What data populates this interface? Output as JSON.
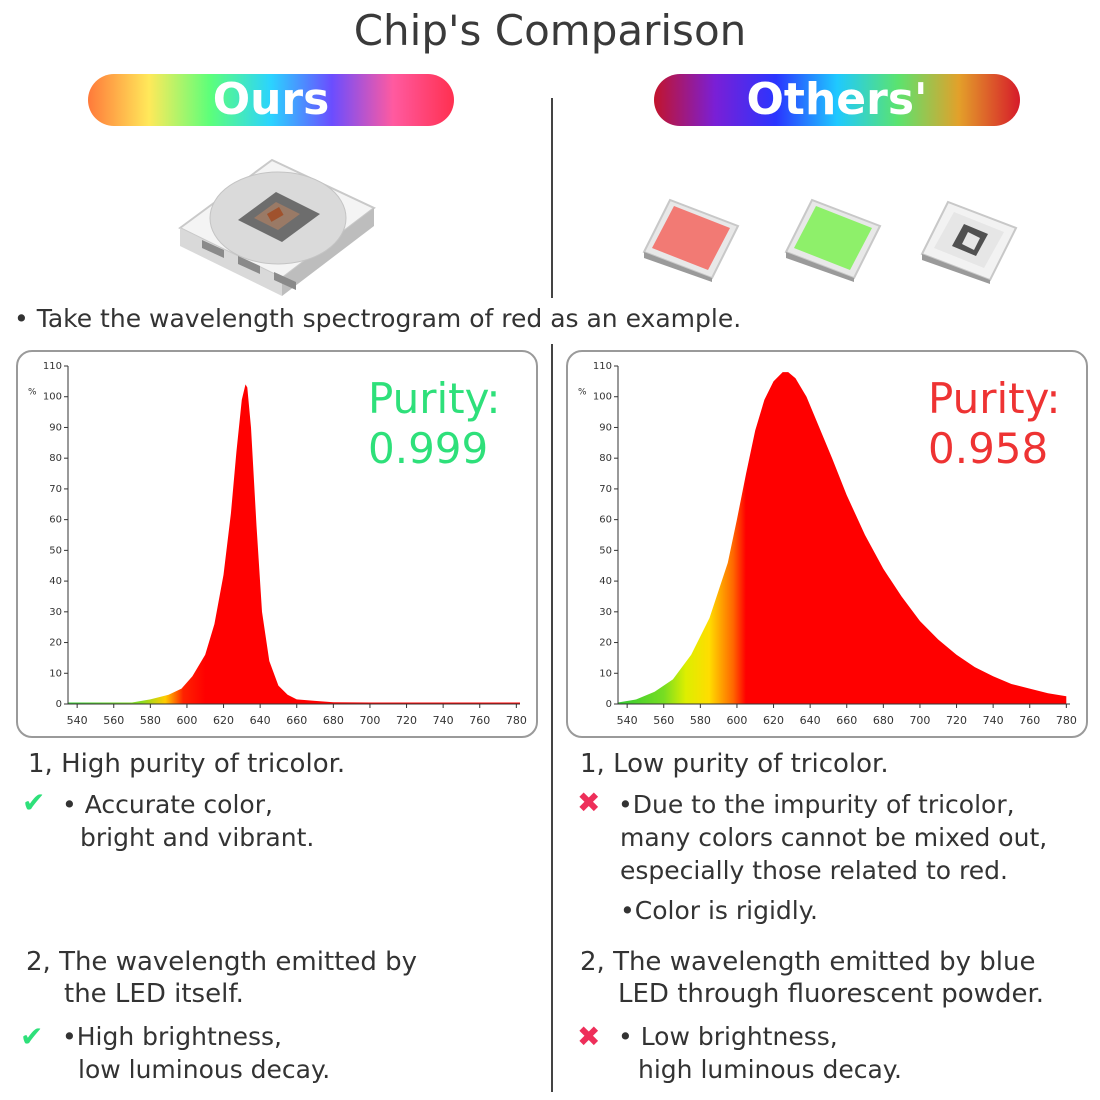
{
  "header": {
    "title": "Chip's Comparison"
  },
  "labels": {
    "ours": "Ours",
    "others": "Others'"
  },
  "note": "• Take the wavelength spectrogram of red as an example.",
  "colors": {
    "check": "#2ee07a",
    "cross": "#ee2f5a",
    "purity_ours": "#2ee07a",
    "purity_others": "#ee3333",
    "spectrum_fill": "#ff0000"
  },
  "icons": {
    "ours_chip": "5050-rgb-led-chip-icon",
    "others_chips": [
      "red-smd-led-chip-icon",
      "green-smd-led-chip-icon",
      "white-smd-led-chip-icon"
    ]
  },
  "chart_data": [
    {
      "type": "area",
      "ylabel": "%",
      "xticks": [
        540,
        560,
        580,
        600,
        620,
        640,
        660,
        680,
        700,
        720,
        740,
        760,
        780
      ],
      "yticks": [
        0,
        10,
        20,
        30,
        40,
        50,
        60,
        70,
        80,
        90,
        100,
        110
      ],
      "xlim": [
        535,
        782
      ],
      "ylim": [
        0,
        110
      ],
      "annotation": {
        "label": "Purity:",
        "value": "0.999"
      },
      "series": [
        {
          "x": [
            535,
            570,
            580,
            590,
            597,
            603,
            610,
            615,
            620,
            624,
            627,
            630,
            632,
            633,
            635,
            638,
            641,
            645,
            650,
            655,
            660,
            670,
            680,
            700,
            782
          ],
          "y": [
            0.5,
            0.5,
            1.5,
            3,
            5,
            9,
            16,
            26,
            42,
            62,
            82,
            99,
            104,
            103,
            90,
            58,
            30,
            14,
            6,
            3,
            1.5,
            1,
            0.6,
            0.5,
            0.5
          ]
        }
      ]
    },
    {
      "type": "area",
      "ylabel": "%",
      "xticks": [
        540,
        560,
        580,
        600,
        620,
        640,
        660,
        680,
        700,
        720,
        740,
        760,
        780
      ],
      "yticks": [
        0,
        10,
        20,
        30,
        40,
        50,
        60,
        70,
        80,
        90,
        100,
        110
      ],
      "xlim": [
        535,
        782
      ],
      "ylim": [
        0,
        110
      ],
      "annotation": {
        "label": "Purity:",
        "value": "0.958"
      },
      "series": [
        {
          "x": [
            535,
            545,
            555,
            565,
            575,
            585,
            595,
            600,
            605,
            610,
            615,
            620,
            625,
            628,
            632,
            638,
            645,
            652,
            660,
            670,
            680,
            690,
            700,
            710,
            720,
            730,
            740,
            750,
            760,
            770,
            780
          ],
          "y": [
            0.5,
            1.5,
            4,
            8,
            16,
            28,
            46,
            60,
            75,
            89,
            99,
            105,
            108,
            108,
            106,
            100,
            90,
            80,
            68,
            55,
            44,
            35,
            27,
            21,
            16,
            12,
            9,
            6.5,
            5,
            3.5,
            2.5
          ]
        }
      ]
    }
  ],
  "left": {
    "item1": {
      "title": "1, High purity of tricolor.",
      "bullets": [
        "• Accurate color,",
        "bright and vibrant."
      ]
    },
    "item2": {
      "title_lines": [
        "2, The wavelength emitted by",
        "the LED itself."
      ],
      "bullets": [
        "•High brightness,",
        "low luminous decay."
      ]
    }
  },
  "right": {
    "item1": {
      "title": "1, Low purity of tricolor.",
      "bullets": [
        "•Due to the impurity of tricolor,",
        "many colors cannot be mixed out,",
        "especially those related to red."
      ],
      "extra": "•Color is rigidly."
    },
    "item2": {
      "title_lines": [
        "2, The wavelength emitted by blue",
        "LED through fluorescent powder."
      ],
      "bullets": [
        "• Low brightness,",
        "high luminous decay."
      ]
    }
  },
  "marks": {
    "check": "✔",
    "cross": "✖"
  }
}
